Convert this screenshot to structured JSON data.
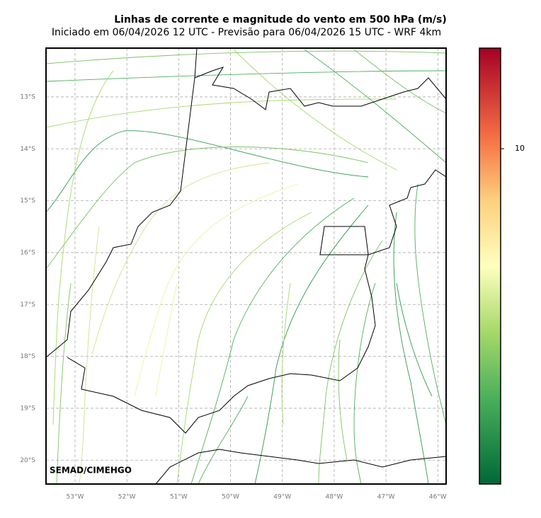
{
  "title": "Linhas de corrente e magnitude do vento em 500 hPa (m/s)",
  "subtitle": "Iniciado em 06/04/2026 12 UTC - Previsão para 06/04/2026 15 UTC - WRF 4km",
  "credit": "SEMAD/CIMEHGO",
  "map": {
    "xlim": [
      -53.56,
      -45.84
    ],
    "ylim": [
      -20.46,
      -12.06
    ],
    "grid": true,
    "xticks": [
      {
        "value": -53,
        "label": "53°W"
      },
      {
        "value": -52,
        "label": "52°W"
      },
      {
        "value": -51,
        "label": "51°W"
      },
      {
        "value": -50,
        "label": "50°W"
      },
      {
        "value": -49,
        "label": "49°W"
      },
      {
        "value": -48,
        "label": "48°W"
      },
      {
        "value": -47,
        "label": "47°W"
      },
      {
        "value": -46,
        "label": "46°W"
      }
    ],
    "yticks": [
      {
        "value": -13,
        "label": "13°S"
      },
      {
        "value": -14,
        "label": "14°S"
      },
      {
        "value": -15,
        "label": "15°S"
      },
      {
        "value": -16,
        "label": "16°S"
      },
      {
        "value": -17,
        "label": "17°S"
      },
      {
        "value": -18,
        "label": "18°S"
      },
      {
        "value": -19,
        "label": "19°S"
      },
      {
        "value": -20,
        "label": "20°S"
      }
    ]
  },
  "colorbar": {
    "lim": [
      0,
      13
    ],
    "ticks": [
      10
    ]
  }
}
